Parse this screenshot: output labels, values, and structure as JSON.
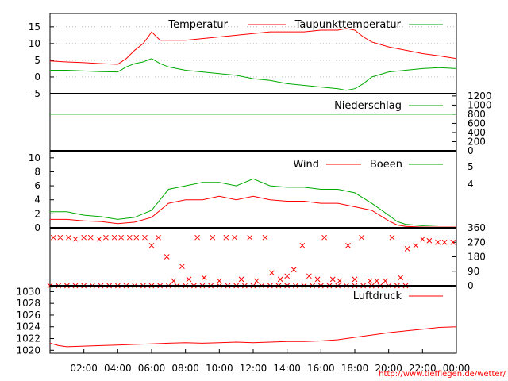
{
  "credit": "http://www.tiefflegen.de/wetter/",
  "x_ticks": [
    "02:00",
    "04:00",
    "06:00",
    "08:00",
    "10:00",
    "12:00",
    "14:00",
    "16:00",
    "18:00",
    "20:00",
    "22:00",
    "00:00"
  ],
  "colors": {
    "red": "#ff0000",
    "green": "#00aa00",
    "grid": "#999999"
  },
  "chart_data": [
    {
      "type": "line",
      "x_unit": "hours",
      "xlim": [
        0,
        24
      ],
      "ylim": [
        -5,
        19
      ],
      "yticks": [
        -5,
        0,
        5,
        10,
        15
      ],
      "series": [
        {
          "name": "Temperatur",
          "color": "#ff0000",
          "x": [
            0,
            1,
            2,
            3,
            4,
            4.5,
            5,
            5.5,
            5.8,
            6,
            6.5,
            7,
            8,
            9,
            10,
            11,
            12,
            13,
            14,
            15,
            16,
            17,
            17.5,
            18,
            18.5,
            19,
            20,
            21,
            22,
            23,
            24
          ],
          "y": [
            4.8,
            4.5,
            4.3,
            4.0,
            3.8,
            5.5,
            8,
            10,
            12,
            13.5,
            11,
            11,
            11,
            11.5,
            12,
            12.5,
            13,
            13.5,
            13.5,
            13.5,
            14,
            14,
            14.5,
            14,
            12,
            10.5,
            9,
            8,
            7,
            6.3,
            5.5
          ]
        },
        {
          "name": "Taupunkttemperatur",
          "color": "#00aa00",
          "x": [
            0,
            1,
            2,
            3,
            4,
            4.5,
            5,
            5.5,
            6,
            6.5,
            7,
            8,
            9,
            10,
            11,
            12,
            13,
            14,
            15,
            16,
            17,
            17.5,
            18,
            18.5,
            19,
            20,
            21,
            22,
            23,
            24
          ],
          "y": [
            2,
            2,
            1.8,
            1.6,
            1.5,
            3,
            4,
            4.5,
            5.5,
            4,
            3,
            2,
            1.5,
            1,
            0.5,
            -0.5,
            -1,
            -2,
            -2.5,
            -3,
            -3.5,
            -4,
            -3.5,
            -2,
            0,
            1.5,
            2,
            2.5,
            2.8,
            2.5
          ]
        }
      ]
    },
    {
      "type": "line",
      "x_unit": "hours",
      "xlim": [
        0,
        24
      ],
      "ylim": [
        0,
        1250
      ],
      "yticks": [
        0,
        200,
        400,
        600,
        800,
        1000,
        1200
      ],
      "series": [
        {
          "name": "Niederschlag",
          "color": "#00aa00",
          "x": [
            0,
            24
          ],
          "y": [
            800,
            800
          ]
        }
      ]
    },
    {
      "type": "line",
      "x_unit": "hours",
      "xlim": [
        0,
        24
      ],
      "ylim": [
        0,
        11
      ],
      "yticks": [
        0,
        2,
        4,
        6,
        8,
        10
      ],
      "right_labels": [
        "5",
        "4"
      ],
      "series": [
        {
          "name": "Wind",
          "color": "#ff0000",
          "x": [
            0,
            1,
            2,
            3,
            4,
            5,
            6,
            6.5,
            7,
            8,
            9,
            10,
            11,
            12,
            13,
            14,
            15,
            16,
            17,
            18,
            19,
            20,
            20.5,
            21,
            22,
            23,
            24
          ],
          "y": [
            1.2,
            1.2,
            1,
            0.9,
            0.6,
            0.8,
            1.5,
            2.5,
            3.5,
            4,
            4,
            4.5,
            4,
            4.5,
            4,
            3.8,
            3.8,
            3.5,
            3.5,
            3,
            2.5,
            1,
            0.4,
            0.2,
            0.1,
            0.1,
            0.1
          ]
        },
        {
          "name": "Boeen",
          "color": "#00aa00",
          "x": [
            0,
            1,
            2,
            3,
            4,
            5,
            6,
            6.5,
            7,
            8,
            9,
            10,
            11,
            12,
            13,
            14,
            15,
            16,
            17,
            18,
            19,
            20,
            20.5,
            21,
            22,
            23,
            24
          ],
          "y": [
            2.3,
            2.3,
            1.8,
            1.6,
            1.2,
            1.5,
            2.5,
            4,
            5.5,
            6,
            6.5,
            6.5,
            6,
            7,
            6,
            5.8,
            5.8,
            5.5,
            5.5,
            5,
            3.5,
            1.8,
            0.9,
            0.5,
            0.3,
            0.4,
            0.4
          ]
        }
      ]
    },
    {
      "type": "scatter",
      "x_unit": "hours",
      "xlim": [
        0,
        24
      ],
      "ylim": [
        0,
        360
      ],
      "yticks": [
        0,
        90,
        180,
        270,
        360
      ],
      "marker": "x",
      "series": [
        {
          "color": "#ff0000",
          "x": [
            0.2,
            0.6,
            1.1,
            1.5,
            2.0,
            2.4,
            2.9,
            3.3,
            3.8,
            4.2,
            4.7,
            5.1,
            5.6,
            6.0,
            6.4,
            6.9,
            7.3,
            7.8,
            8.2,
            8.7,
            9.1,
            9.6,
            10.0,
            10.4,
            10.9,
            11.3,
            11.8,
            12.2,
            12.7,
            13.1,
            13.6,
            14.0,
            14.4,
            14.9,
            15.3,
            15.8,
            16.2,
            16.7,
            17.1,
            17.6,
            18.0,
            18.4,
            18.9,
            19.3,
            19.8,
            20.2,
            20.7,
            21.1,
            21.6,
            22.0,
            22.4,
            22.9,
            23.3,
            23.8
          ],
          "y": [
            300,
            300,
            300,
            290,
            300,
            300,
            290,
            300,
            300,
            300,
            300,
            300,
            300,
            250,
            300,
            180,
            30,
            120,
            40,
            300,
            50,
            300,
            30,
            300,
            300,
            40,
            300,
            30,
            300,
            80,
            40,
            60,
            100,
            250,
            60,
            40,
            300,
            40,
            30,
            250,
            40,
            300,
            30,
            30,
            30,
            300,
            50,
            230,
            250,
            290,
            280,
            270,
            270,
            270
          ]
        },
        {
          "color": "#ff0000",
          "x": [
            0,
            0.5,
            1,
            1.5,
            2,
            2.5,
            3,
            3.5,
            4,
            4.5,
            5,
            5.5,
            6,
            6.5,
            7,
            7.5,
            8,
            8.5,
            9,
            9.5,
            10,
            10.5,
            11,
            11.5,
            12,
            12.5,
            13,
            13.5,
            14,
            14.5,
            15,
            15.5,
            16,
            16.5,
            17,
            17.5,
            18,
            18.5,
            19,
            19.5,
            20,
            20.5,
            21
          ],
          "y": [
            0,
            0,
            0,
            0,
            0,
            0,
            0,
            0,
            0,
            0,
            0,
            0,
            0,
            0,
            0,
            0,
            0,
            0,
            0,
            0,
            0,
            0,
            0,
            0,
            0,
            0,
            0,
            0,
            0,
            0,
            0,
            0,
            0,
            0,
            0,
            0,
            0,
            0,
            0,
            0,
            0,
            0,
            0
          ]
        }
      ]
    },
    {
      "type": "line",
      "x_unit": "hours",
      "xlim": [
        0,
        24
      ],
      "ylim": [
        1019.5,
        1031
      ],
      "yticks": [
        1020,
        1022,
        1024,
        1026,
        1028,
        1030
      ],
      "series": [
        {
          "name": "Luftdruck",
          "color": "#ff0000",
          "x": [
            0,
            0.5,
            1,
            2,
            3,
            4,
            5,
            6,
            7,
            8,
            9,
            10,
            11,
            12,
            13,
            14,
            15,
            16,
            17,
            18,
            19,
            20,
            21,
            22,
            23,
            24
          ],
          "y": [
            1021.2,
            1020.8,
            1020.6,
            1020.7,
            1020.8,
            1020.9,
            1021,
            1021.1,
            1021.2,
            1021.3,
            1021.2,
            1021.3,
            1021.4,
            1021.3,
            1021.4,
            1021.5,
            1021.5,
            1021.6,
            1021.8,
            1022.2,
            1022.6,
            1023,
            1023.3,
            1023.6,
            1023.9,
            1024.0
          ]
        }
      ]
    }
  ]
}
